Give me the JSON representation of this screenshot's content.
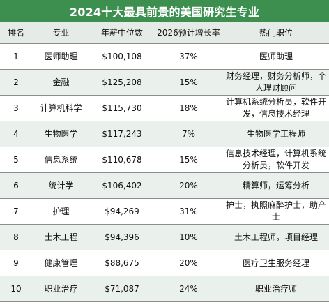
{
  "title": "2024十大最具前景的美国研究生专业",
  "headers": {
    "rank": "排名",
    "major": "专业",
    "salary": "年薪中位数",
    "growth": "2026预计增长率",
    "jobs": "热门职位"
  },
  "rows": [
    {
      "rank": "1",
      "major": "医师助理",
      "salary": "$100,108",
      "growth": "37%",
      "jobs": "医师助理"
    },
    {
      "rank": "2",
      "major": "金融",
      "salary": "$125,208",
      "growth": "15%",
      "jobs": "财务经理，财务分析师，个人理财顾问"
    },
    {
      "rank": "3",
      "major": "计算机科学",
      "salary": "$115,730",
      "growth": "18%",
      "jobs": "计算机系统分析员，软件开发，信息技术经理"
    },
    {
      "rank": "4",
      "major": "生物医学",
      "salary": "$117,243",
      "growth": "7%",
      "jobs": "生物医学工程师"
    },
    {
      "rank": "5",
      "major": "信息系统",
      "salary": "$110,678",
      "growth": "15%",
      "jobs": "信息技术经理，计算机系统分析员，软件开发"
    },
    {
      "rank": "6",
      "major": "统计学",
      "salary": "$106,402",
      "growth": "20%",
      "jobs": "精算师，运筹分析"
    },
    {
      "rank": "7",
      "major": "护理",
      "salary": "$94,269",
      "growth": "31%",
      "jobs": "护士，执照麻醉护士，助产士"
    },
    {
      "rank": "8",
      "major": "土木工程",
      "salary": "$94,396",
      "growth": "10%",
      "jobs": "土木工程师，项目经理"
    },
    {
      "rank": "9",
      "major": "健康管理",
      "salary": "$88,675",
      "growth": "20%",
      "jobs": "医疗卫生服务经理"
    },
    {
      "rank": "10",
      "major": "职业治疗",
      "salary": "$71,087",
      "growth": "24%",
      "jobs": "职业治疗师"
    }
  ]
}
